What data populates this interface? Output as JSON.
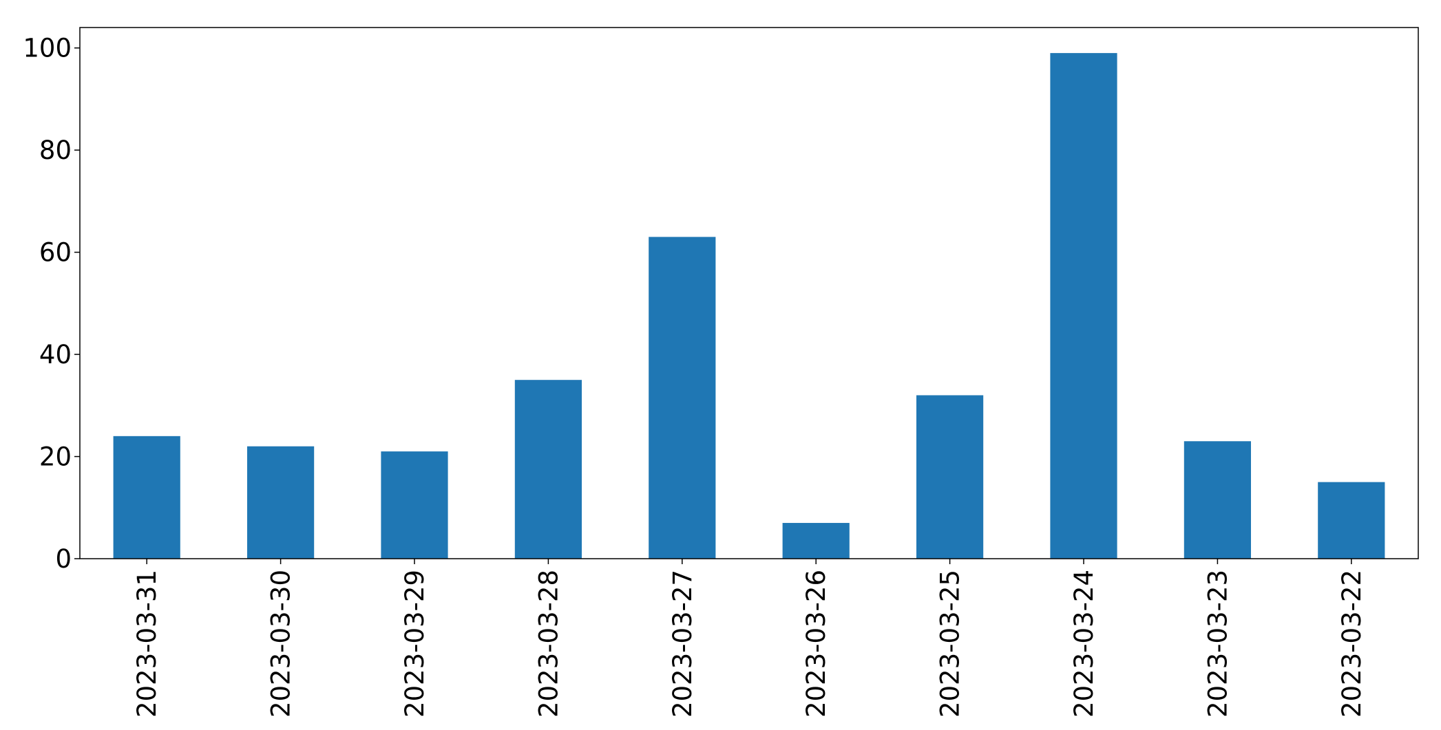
{
  "chart_data": {
    "type": "bar",
    "title": "",
    "xlabel": "",
    "ylabel": "",
    "categories": [
      "2023-03-31",
      "2023-03-30",
      "2023-03-29",
      "2023-03-28",
      "2023-03-27",
      "2023-03-26",
      "2023-03-25",
      "2023-03-24",
      "2023-03-23",
      "2023-03-22"
    ],
    "values": [
      24,
      22,
      21,
      35,
      63,
      7,
      32,
      99,
      23,
      15
    ],
    "ylim": [
      0,
      104
    ],
    "yticks": [
      0,
      20,
      40,
      60,
      80,
      100
    ],
    "bar_color": "#1f77b4",
    "grid": false,
    "legend": false
  }
}
